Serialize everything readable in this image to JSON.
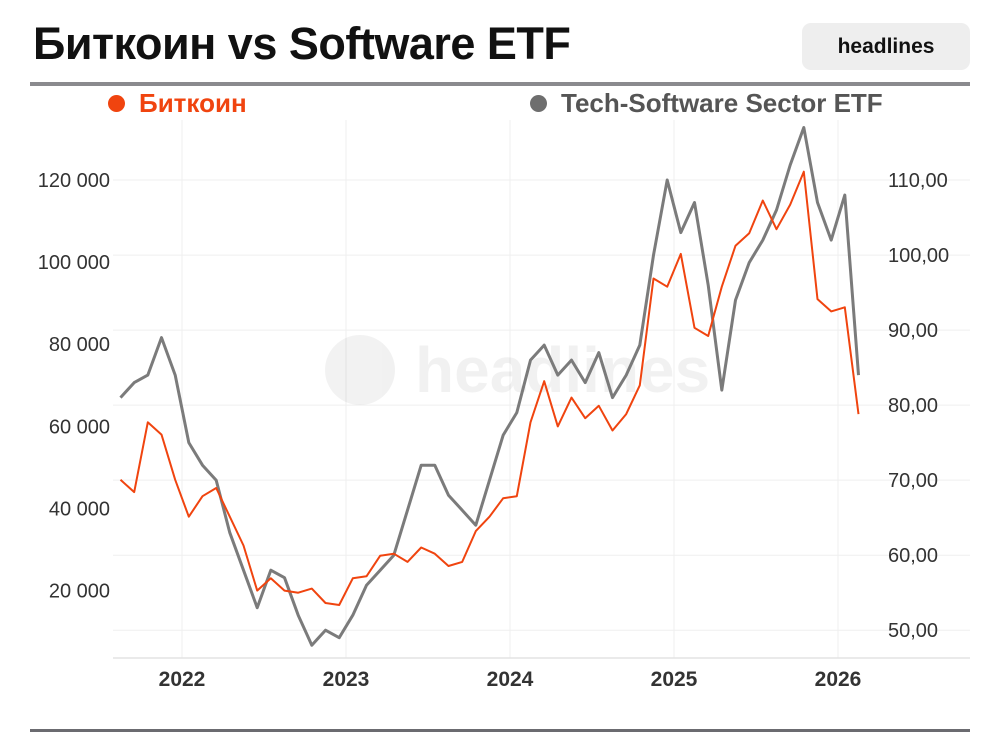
{
  "header": {
    "title": "Биткоин vs Software ETF",
    "badge": "headlines"
  },
  "watermark": "headlines",
  "colors": {
    "bitcoin": "#f0440f",
    "etf": "#7b7b7b",
    "grid": "#efefef"
  },
  "chart_data": {
    "type": "line",
    "title": "Биткоин vs Software ETF",
    "legend_position": "top",
    "grid": true,
    "x_ticks": [
      "2022",
      "2023",
      "2024",
      "2025",
      "2026"
    ],
    "left_axis": {
      "ticks": [
        20000,
        40000,
        60000,
        80000,
        100000,
        120000
      ],
      "tick_labels": [
        "20 000",
        "40 000",
        "60 000",
        "80 000",
        "100 000",
        "120 000"
      ],
      "ylim": [
        3600,
        134600
      ]
    },
    "right_axis": {
      "ticks": [
        50,
        60,
        70,
        80,
        90,
        100,
        110
      ],
      "tick_labels": [
        "50,00",
        "60,00",
        "70,00",
        "80,00",
        "90,00",
        "100,00",
        "110,00"
      ],
      "ylim": [
        46.3,
        118
      ]
    },
    "series": [
      {
        "name": "Биткоин",
        "axis": "left",
        "x": [
          "2021-08",
          "2021-09",
          "2021-10",
          "2021-11",
          "2021-12",
          "2022-01",
          "2022-02",
          "2022-03",
          "2022-04",
          "2022-05",
          "2022-06",
          "2022-07",
          "2022-08",
          "2022-09",
          "2022-10",
          "2022-11",
          "2022-12",
          "2023-01",
          "2023-02",
          "2023-03",
          "2023-04",
          "2023-05",
          "2023-06",
          "2023-07",
          "2023-08",
          "2023-09",
          "2023-10",
          "2023-11",
          "2023-12",
          "2024-01",
          "2024-02",
          "2024-03",
          "2024-04",
          "2024-05",
          "2024-06",
          "2024-07",
          "2024-08",
          "2024-09",
          "2024-10",
          "2024-11",
          "2024-12",
          "2025-01",
          "2025-02",
          "2025-03",
          "2025-04",
          "2025-05",
          "2025-06",
          "2025-07",
          "2025-08",
          "2025-09",
          "2025-10",
          "2025-11",
          "2025-12",
          "2026-01",
          "2026-02"
        ],
        "values": [
          47000,
          44000,
          61000,
          58000,
          47000,
          38000,
          43000,
          45000,
          38000,
          31000,
          20000,
          23000,
          20000,
          19500,
          20500,
          17000,
          16500,
          23000,
          23500,
          28500,
          29000,
          27000,
          30500,
          29000,
          26000,
          27000,
          34500,
          38000,
          42500,
          43000,
          61000,
          71000,
          60000,
          67000,
          62000,
          65000,
          59000,
          63000,
          70000,
          96000,
          94000,
          102000,
          84000,
          82000,
          94000,
          104000,
          107000,
          115000,
          108000,
          114000,
          122000,
          91000,
          88000,
          89000,
          63000
        ]
      },
      {
        "name": "Tech-Software Sector ETF",
        "axis": "right",
        "x": [
          "2021-08",
          "2021-09",
          "2021-10",
          "2021-11",
          "2021-12",
          "2022-01",
          "2022-02",
          "2022-03",
          "2022-04",
          "2022-05",
          "2022-06",
          "2022-07",
          "2022-08",
          "2022-09",
          "2022-10",
          "2022-11",
          "2022-12",
          "2023-01",
          "2023-02",
          "2023-03",
          "2023-04",
          "2023-05",
          "2023-06",
          "2023-07",
          "2023-08",
          "2023-09",
          "2023-10",
          "2023-11",
          "2023-12",
          "2024-01",
          "2024-02",
          "2024-03",
          "2024-04",
          "2024-05",
          "2024-06",
          "2024-07",
          "2024-08",
          "2024-09",
          "2024-10",
          "2024-11",
          "2024-12",
          "2025-01",
          "2025-02",
          "2025-03",
          "2025-04",
          "2025-05",
          "2025-06",
          "2025-07",
          "2025-08",
          "2025-09",
          "2025-10",
          "2025-11",
          "2025-12",
          "2026-01",
          "2026-02"
        ],
        "values": [
          81,
          83,
          84,
          89,
          84,
          75,
          72,
          70,
          63,
          58,
          53,
          58,
          57,
          52,
          48,
          50,
          49,
          52,
          56,
          58,
          60,
          66,
          72,
          72,
          68,
          66,
          64,
          70,
          76,
          79,
          86,
          88,
          84,
          86,
          83,
          87,
          81,
          84,
          88,
          100,
          110,
          103,
          107,
          96,
          82,
          94,
          99,
          102,
          106,
          112,
          117,
          107,
          102,
          108,
          84
        ]
      }
    ]
  }
}
